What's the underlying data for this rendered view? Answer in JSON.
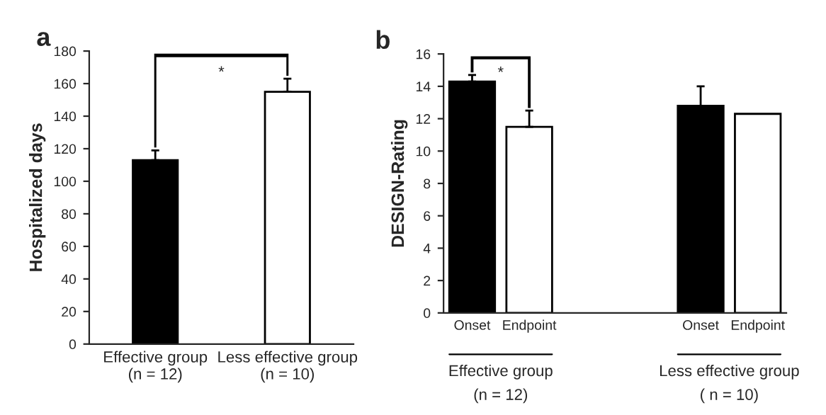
{
  "chart_data": [
    {
      "type": "bar",
      "title": "a",
      "ylabel": "Hospitalized days",
      "categories": [
        "Effective group\n(n = 12)",
        "Less effective group\n(n = 10)"
      ],
      "values": [
        113,
        155
      ],
      "colors": [
        "#000000",
        "#ffffff"
      ],
      "errors": [
        [
          113,
          119
        ],
        [
          155,
          163
        ]
      ],
      "ylim": [
        0,
        180
      ],
      "yticks": [
        0,
        20,
        40,
        60,
        80,
        100,
        120,
        140,
        160,
        180
      ],
      "grid": false,
      "legend": false,
      "annotations": [
        "*"
      ]
    },
    {
      "type": "bar",
      "title": "b",
      "ylabel": "DESIGN-Rating",
      "categories": [
        "Onset",
        "Endpoint",
        null,
        null,
        "Onset",
        "Endpoint"
      ],
      "values": [
        14.3,
        11.5,
        null,
        null,
        12.8,
        12.3
      ],
      "colors": [
        "#000000",
        "#ffffff",
        "#ffffff",
        "#ffffff",
        "#000000",
        "#ffffff"
      ],
      "errors": [
        [
          14.3,
          14.7
        ],
        [
          11.5,
          12.5
        ],
        null,
        null,
        [
          12.8,
          14.0
        ],
        null
      ],
      "ylim": [
        0,
        16
      ],
      "yticks": [
        0,
        2,
        4,
        6,
        8,
        10,
        12,
        14,
        16
      ],
      "grid": false,
      "legend": false,
      "annotations": [
        "*",
        "Effective group\n(n = 12)",
        "Less effective group\n( n = 10)"
      ]
    }
  ]
}
